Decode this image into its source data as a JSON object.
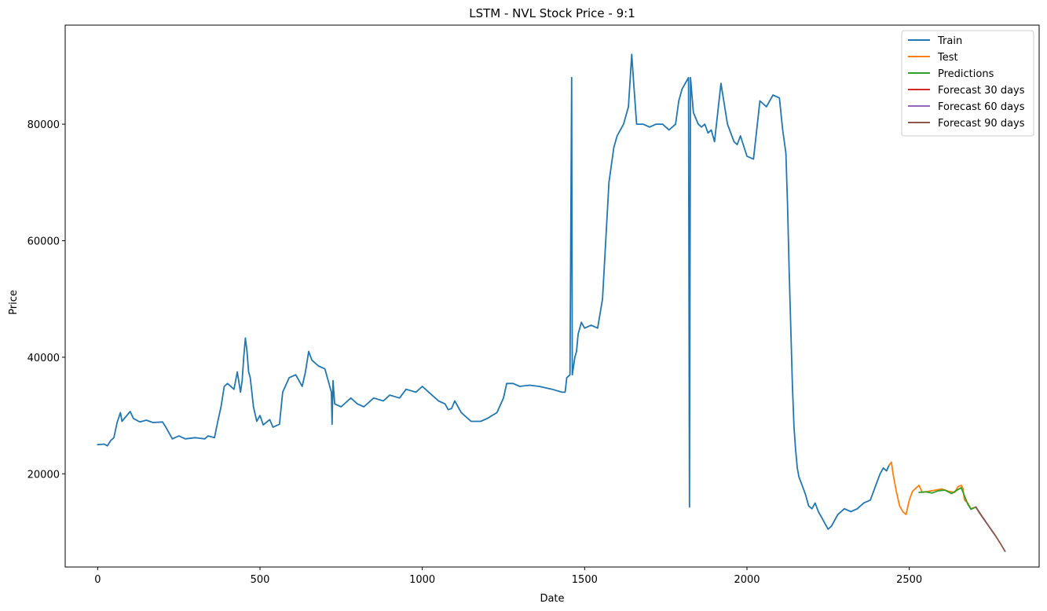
{
  "chart_data": {
    "type": "line",
    "title": "LSTM - NVL Stock Price - 9:1",
    "xlabel": "Date",
    "ylabel": "Price",
    "xlim": [
      -100,
      2900
    ],
    "ylim": [
      4000,
      97000
    ],
    "xticks": [
      0,
      500,
      1000,
      1500,
      2000,
      2500
    ],
    "yticks": [
      20000,
      40000,
      60000,
      80000
    ],
    "grid": false,
    "legend_position": "top-right",
    "series": [
      {
        "name": "Train",
        "color": "#1f77b4",
        "points": [
          [
            0,
            25000
          ],
          [
            20,
            25100
          ],
          [
            30,
            24800
          ],
          [
            40,
            25700
          ],
          [
            50,
            26200
          ],
          [
            60,
            28800
          ],
          [
            70,
            30500
          ],
          [
            75,
            29000
          ],
          [
            100,
            30700
          ],
          [
            110,
            29500
          ],
          [
            130,
            28900
          ],
          [
            150,
            29200
          ],
          [
            170,
            28800
          ],
          [
            200,
            28900
          ],
          [
            210,
            28000
          ],
          [
            230,
            26000
          ],
          [
            250,
            26500
          ],
          [
            270,
            26000
          ],
          [
            300,
            26200
          ],
          [
            330,
            26000
          ],
          [
            340,
            26500
          ],
          [
            360,
            26200
          ],
          [
            370,
            29000
          ],
          [
            380,
            31500
          ],
          [
            390,
            35000
          ],
          [
            400,
            35500
          ],
          [
            420,
            34500
          ],
          [
            430,
            37500
          ],
          [
            440,
            34000
          ],
          [
            445,
            36000
          ],
          [
            450,
            40000
          ],
          [
            455,
            43300
          ],
          [
            460,
            41000
          ],
          [
            465,
            37500
          ],
          [
            470,
            36500
          ],
          [
            480,
            31500
          ],
          [
            490,
            29000
          ],
          [
            500,
            30000
          ],
          [
            510,
            28400
          ],
          [
            530,
            29300
          ],
          [
            540,
            28000
          ],
          [
            560,
            28500
          ],
          [
            570,
            34000
          ],
          [
            590,
            36500
          ],
          [
            610,
            37000
          ],
          [
            620,
            36000
          ],
          [
            630,
            35000
          ],
          [
            640,
            37500
          ],
          [
            650,
            41000
          ],
          [
            660,
            39500
          ],
          [
            680,
            38500
          ],
          [
            700,
            38000
          ],
          [
            710,
            36000
          ],
          [
            720,
            34000
          ],
          [
            722,
            28500
          ],
          [
            725,
            36000
          ],
          [
            730,
            32000
          ],
          [
            750,
            31500
          ],
          [
            780,
            33000
          ],
          [
            800,
            32000
          ],
          [
            820,
            31500
          ],
          [
            850,
            33000
          ],
          [
            880,
            32500
          ],
          [
            900,
            33500
          ],
          [
            930,
            33000
          ],
          [
            950,
            34500
          ],
          [
            980,
            34000
          ],
          [
            1000,
            35000
          ],
          [
            1020,
            34000
          ],
          [
            1050,
            32500
          ],
          [
            1070,
            32000
          ],
          [
            1080,
            31000
          ],
          [
            1090,
            31200
          ],
          [
            1100,
            32500
          ],
          [
            1120,
            30500
          ],
          [
            1150,
            29000
          ],
          [
            1180,
            29000
          ],
          [
            1200,
            29500
          ],
          [
            1230,
            30500
          ],
          [
            1250,
            33000
          ],
          [
            1260,
            35500
          ],
          [
            1280,
            35500
          ],
          [
            1300,
            35000
          ],
          [
            1330,
            35200
          ],
          [
            1360,
            35000
          ],
          [
            1400,
            34500
          ],
          [
            1430,
            34000
          ],
          [
            1440,
            34000
          ],
          [
            1445,
            36500
          ],
          [
            1455,
            37000
          ],
          [
            1460,
            88000
          ],
          [
            1462,
            37000
          ],
          [
            1470,
            40000
          ],
          [
            1475,
            41000
          ],
          [
            1480,
            44000
          ],
          [
            1490,
            46000
          ],
          [
            1500,
            45000
          ],
          [
            1520,
            45500
          ],
          [
            1540,
            45000
          ],
          [
            1555,
            50000
          ],
          [
            1565,
            60000
          ],
          [
            1575,
            70000
          ],
          [
            1590,
            76000
          ],
          [
            1600,
            78000
          ],
          [
            1620,
            80000
          ],
          [
            1635,
            83000
          ],
          [
            1645,
            92000
          ],
          [
            1650,
            88000
          ],
          [
            1660,
            80000
          ],
          [
            1680,
            80000
          ],
          [
            1700,
            79500
          ],
          [
            1720,
            80000
          ],
          [
            1740,
            80000
          ],
          [
            1760,
            79000
          ],
          [
            1780,
            80000
          ],
          [
            1790,
            84000
          ],
          [
            1800,
            86000
          ],
          [
            1815,
            87500
          ],
          [
            1820,
            88000
          ],
          [
            1823,
            14300
          ],
          [
            1826,
            88000
          ],
          [
            1835,
            82000
          ],
          [
            1850,
            80000
          ],
          [
            1860,
            79500
          ],
          [
            1870,
            80000
          ],
          [
            1880,
            78500
          ],
          [
            1890,
            79000
          ],
          [
            1900,
            77000
          ],
          [
            1920,
            87000
          ],
          [
            1940,
            80000
          ],
          [
            1960,
            77000
          ],
          [
            1970,
            76500
          ],
          [
            1980,
            78000
          ],
          [
            2000,
            74500
          ],
          [
            2020,
            74000
          ],
          [
            2040,
            84000
          ],
          [
            2060,
            83000
          ],
          [
            2080,
            85000
          ],
          [
            2100,
            84500
          ],
          [
            2110,
            79000
          ],
          [
            2120,
            75000
          ],
          [
            2125,
            66000
          ],
          [
            2130,
            55000
          ],
          [
            2135,
            45000
          ],
          [
            2140,
            35000
          ],
          [
            2145,
            28000
          ],
          [
            2150,
            24000
          ],
          [
            2155,
            21000
          ],
          [
            2160,
            19500
          ],
          [
            2170,
            18000
          ],
          [
            2180,
            16500
          ],
          [
            2190,
            14500
          ],
          [
            2200,
            14000
          ],
          [
            2210,
            15000
          ],
          [
            2220,
            13500
          ],
          [
            2230,
            12500
          ],
          [
            2240,
            11500
          ],
          [
            2250,
            10500
          ],
          [
            2260,
            11000
          ],
          [
            2270,
            12000
          ],
          [
            2280,
            13000
          ],
          [
            2300,
            14000
          ],
          [
            2320,
            13500
          ],
          [
            2340,
            14000
          ],
          [
            2360,
            15000
          ],
          [
            2380,
            15500
          ],
          [
            2400,
            18500
          ],
          [
            2410,
            20000
          ],
          [
            2420,
            21000
          ],
          [
            2430,
            20500
          ],
          [
            2438,
            21500
          ]
        ]
      },
      {
        "name": "Test",
        "color": "#ff7f0e",
        "points": [
          [
            2438,
            21500
          ],
          [
            2445,
            22000
          ],
          [
            2450,
            20000
          ],
          [
            2460,
            17000
          ],
          [
            2470,
            14500
          ],
          [
            2480,
            13500
          ],
          [
            2490,
            13000
          ],
          [
            2500,
            15500
          ],
          [
            2510,
            17000
          ],
          [
            2520,
            17500
          ],
          [
            2530,
            18000
          ],
          [
            2540,
            16800
          ],
          [
            2560,
            17000
          ],
          [
            2580,
            17200
          ],
          [
            2600,
            17400
          ],
          [
            2620,
            17000
          ],
          [
            2640,
            16800
          ],
          [
            2650,
            17800
          ],
          [
            2660,
            18000
          ],
          [
            2665,
            17500
          ],
          [
            2670,
            15500
          ],
          [
            2680,
            15000
          ],
          [
            2690,
            14000
          ],
          [
            2700,
            14200
          ]
        ]
      },
      {
        "name": "Predictions",
        "color": "#2ca02c",
        "points": [
          [
            2530,
            16800
          ],
          [
            2550,
            16900
          ],
          [
            2570,
            16700
          ],
          [
            2590,
            17100
          ],
          [
            2610,
            17200
          ],
          [
            2630,
            16600
          ],
          [
            2650,
            17300
          ],
          [
            2660,
            17600
          ],
          [
            2668,
            16500
          ],
          [
            2680,
            14800
          ],
          [
            2690,
            13900
          ],
          [
            2705,
            14300
          ]
        ]
      },
      {
        "name": "Forecast 30 days",
        "color": "#d62728",
        "points": [
          [
            2705,
            14300
          ],
          [
            2720,
            13000
          ],
          [
            2735,
            11800
          ]
        ]
      },
      {
        "name": "Forecast 60 days",
        "color": "#9467bd",
        "points": [
          [
            2705,
            14300
          ],
          [
            2720,
            13000
          ],
          [
            2735,
            11800
          ],
          [
            2750,
            10600
          ],
          [
            2765,
            9400
          ]
        ]
      },
      {
        "name": "Forecast 90 days",
        "color": "#8c564b",
        "points": [
          [
            2705,
            14300
          ],
          [
            2720,
            13000
          ],
          [
            2735,
            11800
          ],
          [
            2750,
            10600
          ],
          [
            2765,
            9400
          ],
          [
            2780,
            8100
          ],
          [
            2795,
            6700
          ]
        ]
      }
    ]
  }
}
